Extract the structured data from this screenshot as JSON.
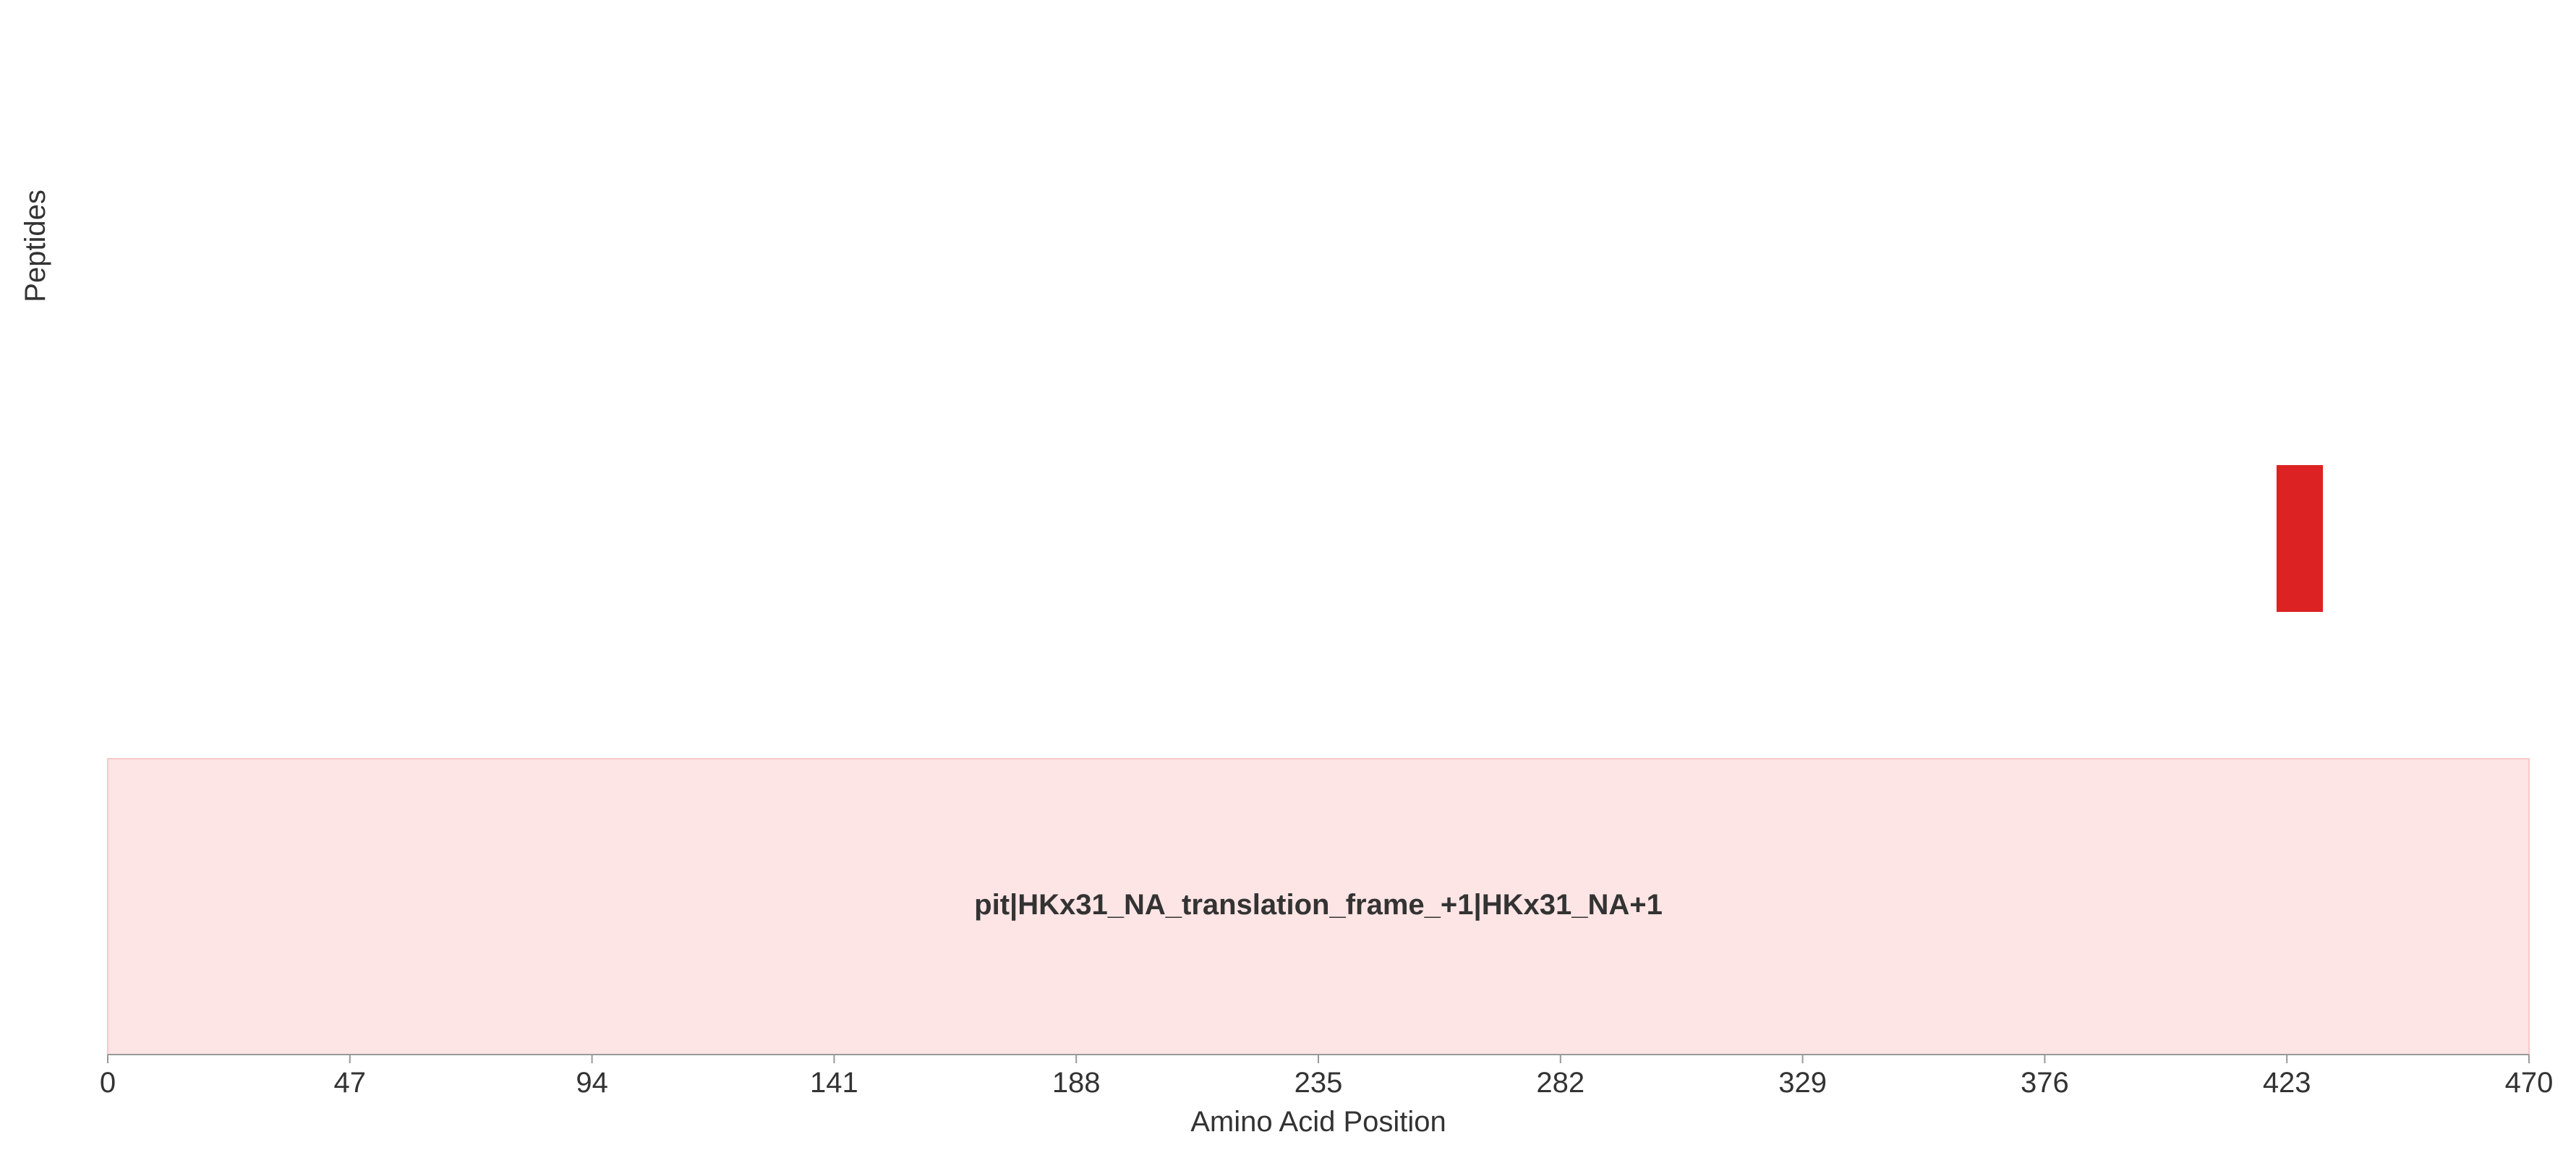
{
  "chart_data": {
    "type": "bar",
    "xlabel": "Amino Acid Position",
    "ylabel": "Peptides",
    "xlim": [
      0,
      470
    ],
    "x_ticks": [
      0,
      47,
      94,
      141,
      188,
      235,
      282,
      329,
      376,
      423,
      470
    ],
    "protein": {
      "label": "pit|HKx31_NA_translation_frame_+1|HKx31_NA+1",
      "start": 0,
      "end": 470,
      "color": "#fde4e5"
    },
    "peptides": [
      {
        "start": 421,
        "end": 430,
        "color": "#dc2222"
      }
    ],
    "grid": false,
    "colors": {
      "peptide": "#dc2222",
      "protein_fill": "#fde4e5",
      "protein_edge": "#f6c9cb",
      "axis": "#999999",
      "text": "#333333"
    }
  }
}
